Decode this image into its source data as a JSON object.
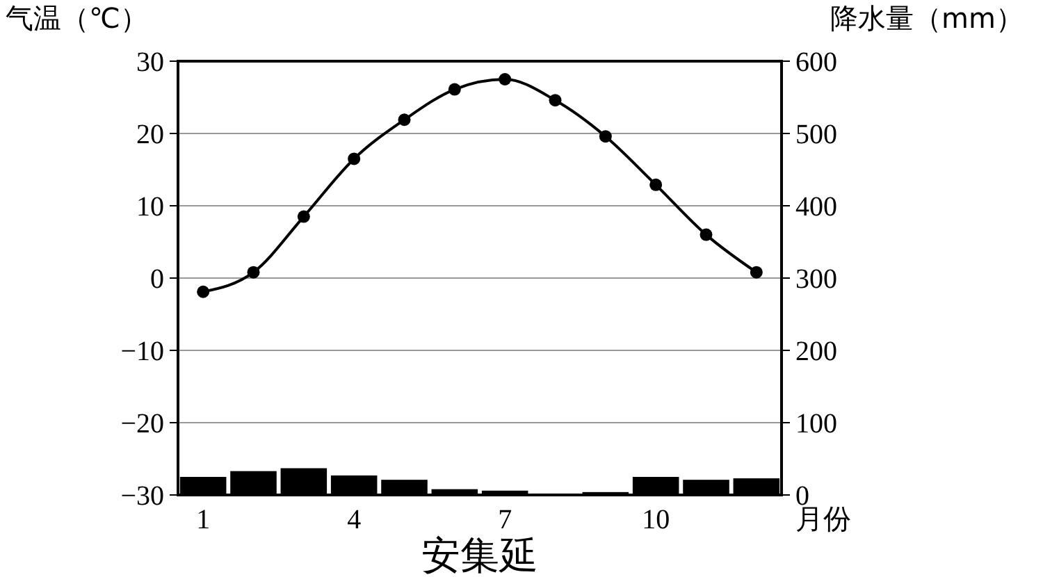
{
  "chart_data": {
    "type": "bar",
    "title": "安集延",
    "xlabel": "月份",
    "ylabel": "气温（℃）",
    "y2label": "降水量（mm）",
    "categories": [
      "1",
      null,
      null,
      "4",
      null,
      null,
      "7",
      null,
      null,
      "10",
      null,
      null
    ],
    "series": [
      {
        "axis": "y2",
        "color": "#000000",
        "values": [
          25,
          33,
          37,
          27,
          21,
          8,
          6,
          2,
          4,
          25,
          21,
          23
        ]
      },
      {
        "type": "line",
        "axis": "y",
        "color": "#000000",
        "marker": "circle",
        "values": [
          -1.9,
          0.8,
          8.5,
          16.5,
          21.9,
          26.1,
          27.5,
          24.6,
          19.6,
          12.9,
          6,
          0.8
        ]
      }
    ],
    "ylim": [
      -30,
      30
    ],
    "yticks": [
      -30,
      -20,
      -10,
      0,
      10,
      20,
      30
    ],
    "y2lim": [
      0,
      600
    ],
    "y2ticks": [
      0,
      100,
      200,
      300,
      400,
      500,
      600
    ],
    "grid": "y"
  }
}
